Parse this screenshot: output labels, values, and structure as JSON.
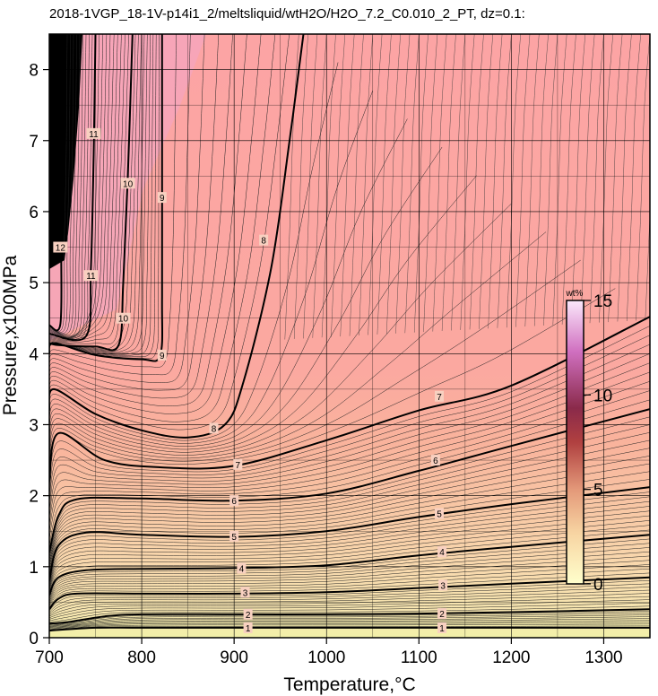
{
  "chart_data": {
    "type": "heatmap",
    "title": "2018-1VGP_18-1V-p14i1_2/meltsliquid/wtH2O/H2O_7.2_C0.010_2_PT, dz=0.1:",
    "xlabel": "Temperature,°C",
    "ylabel": "Pressure,x100MPa",
    "xlim": [
      700,
      1350
    ],
    "ylim": [
      0,
      8.5
    ],
    "xticks": [
      "700",
      "800",
      "900",
      "1000",
      "1100",
      "1200",
      "1300"
    ],
    "yticks": [
      "0",
      "1",
      "2",
      "3",
      "4",
      "5",
      "6",
      "7",
      "8"
    ],
    "grid": true,
    "colorbar": {
      "label": "wt%",
      "ticks": [
        "0",
        "5",
        "10",
        "15"
      ],
      "range": [
        0,
        15
      ],
      "colors": [
        "#ffffcc",
        "#f7d4a2",
        "#e49a7a",
        "#b04040",
        "#8a2a4a",
        "#d070c0",
        "#fbe8fb"
      ]
    },
    "contours": [
      {
        "level": "1",
        "points": [
          [
            700,
            0.1
          ],
          [
            750,
            0.14
          ],
          [
            800,
            0.14
          ],
          [
            900,
            0.14
          ],
          [
            1000,
            0.14
          ],
          [
            1100,
            0.14
          ],
          [
            1200,
            0.14
          ],
          [
            1350,
            0.14
          ]
        ],
        "labels": [
          [
            915,
            0.14
          ],
          [
            1125,
            0.14
          ]
        ]
      },
      {
        "level": "2",
        "points": [
          [
            700,
            0.2
          ],
          [
            720,
            0.22
          ],
          [
            760,
            0.3
          ],
          [
            800,
            0.33
          ],
          [
            900,
            0.33
          ],
          [
            1000,
            0.33
          ],
          [
            1100,
            0.34
          ],
          [
            1200,
            0.36
          ],
          [
            1350,
            0.4
          ]
        ],
        "labels": [
          [
            915,
            0.33
          ],
          [
            1125,
            0.34
          ]
        ]
      },
      {
        "level": "3",
        "points": [
          [
            700,
            0.4
          ],
          [
            710,
            0.55
          ],
          [
            730,
            0.62
          ],
          [
            800,
            0.62
          ],
          [
            900,
            0.62
          ],
          [
            1000,
            0.64
          ],
          [
            1100,
            0.7
          ],
          [
            1200,
            0.76
          ],
          [
            1350,
            0.85
          ]
        ],
        "labels": [
          [
            912,
            0.64
          ],
          [
            1126,
            0.74
          ]
        ]
      },
      {
        "level": "4",
        "points": [
          [
            700,
            0.6
          ],
          [
            710,
            0.85
          ],
          [
            740,
            0.95
          ],
          [
            800,
            0.97
          ],
          [
            900,
            0.98
          ],
          [
            1000,
            1.02
          ],
          [
            1100,
            1.16
          ],
          [
            1200,
            1.28
          ],
          [
            1350,
            1.45
          ]
        ],
        "labels": [
          [
            908,
            0.98
          ],
          [
            1125,
            1.21
          ]
        ]
      },
      {
        "level": "5",
        "points": [
          [
            700,
            0.8
          ],
          [
            710,
            1.3
          ],
          [
            740,
            1.48
          ],
          [
            800,
            1.45
          ],
          [
            900,
            1.42
          ],
          [
            1000,
            1.5
          ],
          [
            1100,
            1.7
          ],
          [
            1200,
            1.88
          ],
          [
            1350,
            2.12
          ]
        ],
        "labels": [
          [
            900,
            1.43
          ],
          [
            1122,
            1.75
          ]
        ]
      },
      {
        "level": "6",
        "points": [
          [
            700,
            1.2
          ],
          [
            710,
            1.72
          ],
          [
            730,
            1.95
          ],
          [
            800,
            1.96
          ],
          [
            900,
            1.93
          ],
          [
            1000,
            2.03
          ],
          [
            1100,
            2.35
          ],
          [
            1200,
            2.7
          ],
          [
            1350,
            3.22
          ]
        ],
        "labels": [
          [
            900,
            1.93
          ],
          [
            1118,
            2.5
          ]
        ]
      },
      {
        "level": "7",
        "points": [
          [
            700,
            2.2
          ],
          [
            710,
            2.88
          ],
          [
            760,
            2.5
          ],
          [
            820,
            2.4
          ],
          [
            900,
            2.42
          ],
          [
            1000,
            2.78
          ],
          [
            1100,
            3.2
          ],
          [
            1200,
            3.55
          ],
          [
            1350,
            4.52
          ]
        ],
        "labels": [
          [
            904,
            2.44
          ],
          [
            1122,
            3.4
          ]
        ]
      },
      {
        "level": "8",
        "points": [
          [
            700,
            3.2
          ],
          [
            705,
            3.5
          ],
          [
            750,
            3.15
          ],
          [
            800,
            2.92
          ],
          [
            850,
            2.82
          ],
          [
            890,
            3.0
          ],
          [
            910,
            3.6
          ],
          [
            940,
            5.2
          ],
          [
            960,
            7.0
          ],
          [
            975,
            8.5
          ]
        ],
        "labels": [
          [
            878,
            2.95
          ],
          [
            932,
            5.6
          ]
        ]
      },
      {
        "level": "9",
        "points": [
          [
            700,
            4.0
          ],
          [
            705,
            4.15
          ],
          [
            750,
            3.98
          ],
          [
            800,
            3.92
          ],
          [
            820,
            3.98
          ],
          [
            822,
            4.8
          ],
          [
            822,
            6.5
          ],
          [
            822,
            8.5
          ]
        ],
        "labels": [
          [
            822,
            3.98
          ],
          [
            822,
            6.2
          ]
        ]
      },
      {
        "level": "10",
        "points": [
          [
            700,
            4.15
          ],
          [
            710,
            4.12
          ],
          [
            750,
            4.1
          ],
          [
            775,
            4.12
          ],
          [
            780,
            5.0
          ],
          [
            785,
            6.5
          ],
          [
            790,
            8.5
          ]
        ],
        "labels": [
          [
            780,
            4.5
          ],
          [
            785,
            6.4
          ]
        ]
      },
      {
        "level": "11",
        "points": [
          [
            700,
            4.28
          ],
          [
            740,
            4.25
          ],
          [
            745,
            5.2
          ],
          [
            748,
            6.8
          ],
          [
            750,
            8.5
          ]
        ],
        "labels": [
          [
            745,
            5.1
          ],
          [
            748,
            7.1
          ]
        ]
      },
      {
        "level": "12",
        "points": [
          [
            700,
            4.4
          ],
          [
            712,
            4.42
          ],
          [
            713,
            5.6
          ],
          [
            715,
            6.8
          ],
          [
            716,
            8.5
          ]
        ],
        "labels": [
          [
            712,
            5.5
          ]
        ]
      }
    ]
  }
}
